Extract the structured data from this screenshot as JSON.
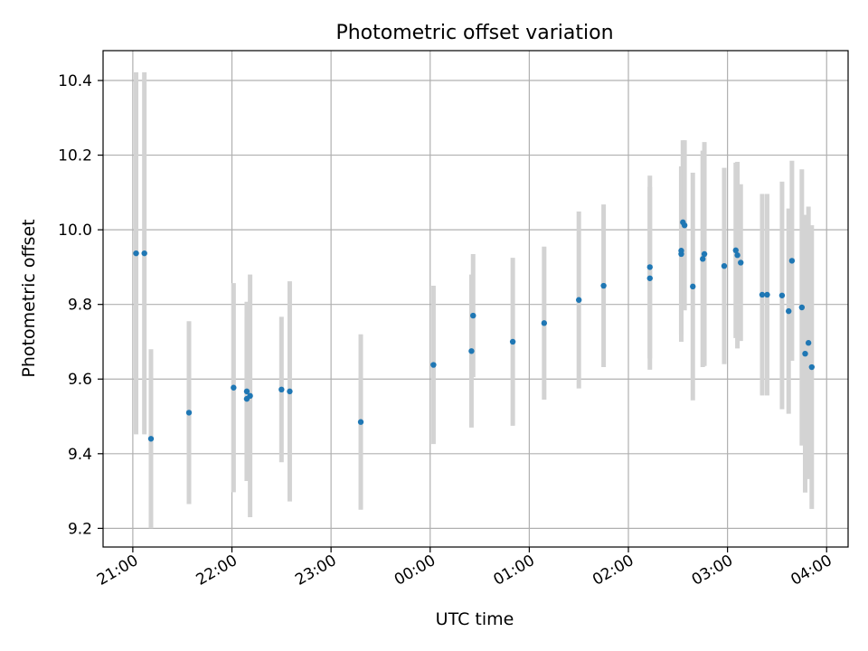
{
  "chart_data": {
    "type": "scatter",
    "title": "Photometric offset variation",
    "xlabel": "UTC time",
    "ylabel": "Photometric offset",
    "xlim": [
      "20:42",
      "04:13"
    ],
    "ylim": [
      9.15,
      10.48
    ],
    "x_ticks": [
      "21:00",
      "22:00",
      "23:00",
      "00:00",
      "01:00",
      "02:00",
      "03:00",
      "04:00"
    ],
    "y_ticks": [
      "9.2",
      "9.4",
      "9.6",
      "9.8",
      "10.0",
      "10.2",
      "10.4"
    ],
    "grid": true,
    "marker_color": "#1f77b4",
    "errorbar_color": "#d3d3d3",
    "points": [
      {
        "t": "21:02",
        "y": 9.937,
        "err": 0.485
      },
      {
        "t": "21:07",
        "y": 9.937,
        "err": 0.485
      },
      {
        "t": "21:11",
        "y": 9.44,
        "err": 0.24
      },
      {
        "t": "21:34",
        "y": 9.51,
        "err": 0.245
      },
      {
        "t": "22:01",
        "y": 9.577,
        "err": 0.28
      },
      {
        "t": "22:09",
        "y": 9.567,
        "err": 0.24
      },
      {
        "t": "22:09",
        "y": 9.547,
        "err": 0.22
      },
      {
        "t": "22:11",
        "y": 9.555,
        "err": 0.325
      },
      {
        "t": "22:30",
        "y": 9.572,
        "err": 0.195
      },
      {
        "t": "22:35",
        "y": 9.567,
        "err": 0.295
      },
      {
        "t": "23:18",
        "y": 9.485,
        "err": 0.235
      },
      {
        "t": "00:02",
        "y": 9.638,
        "err": 0.212
      },
      {
        "t": "00:25",
        "y": 9.675,
        "err": 0.205
      },
      {
        "t": "00:26",
        "y": 9.77,
        "err": 0.165
      },
      {
        "t": "00:50",
        "y": 9.7,
        "err": 0.225
      },
      {
        "t": "01:09",
        "y": 9.75,
        "err": 0.205
      },
      {
        "t": "01:30",
        "y": 9.812,
        "err": 0.237
      },
      {
        "t": "01:45",
        "y": 9.85,
        "err": 0.218
      },
      {
        "t": "02:13",
        "y": 9.87,
        "err": 0.245
      },
      {
        "t": "02:13",
        "y": 9.9,
        "err": 0.245
      },
      {
        "t": "02:32",
        "y": 9.935,
        "err": 0.235
      },
      {
        "t": "02:32",
        "y": 9.944,
        "err": 0.225
      },
      {
        "t": "02:33",
        "y": 10.02,
        "err": 0.22
      },
      {
        "t": "02:34",
        "y": 10.012,
        "err": 0.228
      },
      {
        "t": "02:39",
        "y": 9.848,
        "err": 0.305
      },
      {
        "t": "02:45",
        "y": 9.922,
        "err": 0.29
      },
      {
        "t": "02:46",
        "y": 9.935,
        "err": 0.3
      },
      {
        "t": "02:58",
        "y": 9.903,
        "err": 0.263
      },
      {
        "t": "03:05",
        "y": 9.945,
        "err": 0.235
      },
      {
        "t": "03:06",
        "y": 9.932,
        "err": 0.25
      },
      {
        "t": "03:08",
        "y": 9.912,
        "err": 0.21
      },
      {
        "t": "03:21",
        "y": 9.826,
        "err": 0.27
      },
      {
        "t": "03:24",
        "y": 9.826,
        "err": 0.27
      },
      {
        "t": "03:33",
        "y": 9.824,
        "err": 0.305
      },
      {
        "t": "03:37",
        "y": 9.782,
        "err": 0.275
      },
      {
        "t": "03:39",
        "y": 9.917,
        "err": 0.268
      },
      {
        "t": "03:45",
        "y": 9.792,
        "err": 0.37
      },
      {
        "t": "03:47",
        "y": 9.668,
        "err": 0.372
      },
      {
        "t": "03:49",
        "y": 9.697,
        "err": 0.365
      },
      {
        "t": "03:51",
        "y": 9.632,
        "err": 0.38
      }
    ]
  }
}
